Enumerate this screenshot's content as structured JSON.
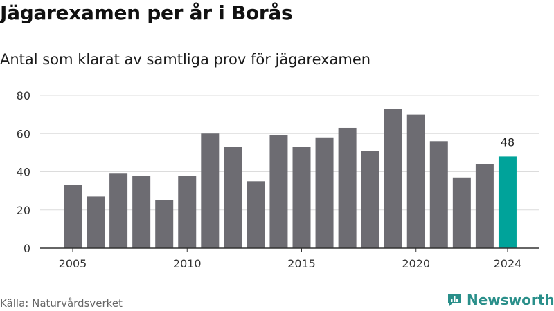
{
  "title": "Jägarexamen per år i Borås",
  "subtitle": "Antal som klarat av samtliga prov för jägarexamen",
  "source": "Källa: Naturvårdsverket",
  "brand": {
    "name": "Newsworthy",
    "icon": "newsworthy-logo-icon",
    "color": "#2a8f8a"
  },
  "colors": {
    "bar": "#6d6c72",
    "highlight": "#00a39a",
    "grid": "#dcdcdc",
    "axis": "#333333"
  },
  "chart_data": {
    "type": "bar",
    "x": [
      2005,
      2006,
      2007,
      2008,
      2009,
      2010,
      2011,
      2012,
      2013,
      2014,
      2015,
      2016,
      2017,
      2018,
      2019,
      2020,
      2021,
      2022,
      2023,
      2024
    ],
    "values": [
      33,
      27,
      39,
      38,
      25,
      38,
      60,
      53,
      35,
      59,
      53,
      58,
      63,
      51,
      73,
      70,
      56,
      37,
      44,
      48
    ],
    "highlight": {
      "x": 2024,
      "value": 48,
      "label": "48"
    },
    "x_ticks": [
      "2005",
      "2010",
      "2015",
      "2020",
      "2024"
    ],
    "y_ticks": [
      "0",
      "20",
      "40",
      "60",
      "80"
    ],
    "ylim": [
      0,
      80
    ],
    "grid": true,
    "xlabel": "",
    "ylabel": ""
  }
}
